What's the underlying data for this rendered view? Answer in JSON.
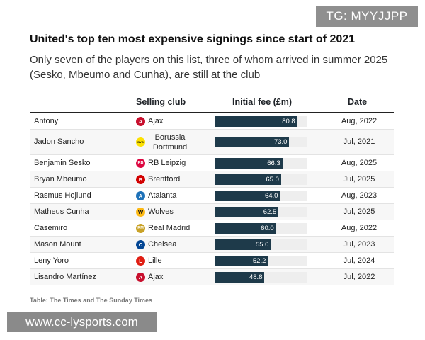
{
  "watermark_top": "TG: MYYJJPP",
  "watermark_bottom": "www.cc-lysports.com",
  "colors": {
    "bar": "#1e3a4a",
    "track": "#eeeeee"
  },
  "chart_data": {
    "type": "table",
    "title": "United's top ten most expensive signings since start of 2021",
    "subtitle": "Only seven of the players on this list, three of whom arrived in summer 2025 (Sesko, Mbeumo and Cunha), are still at the club",
    "columns": [
      "Selling club",
      "Initial fee (£m)",
      "Date"
    ],
    "max_fee": 90,
    "rows": [
      {
        "player": "Antony",
        "club": "Ajax",
        "crest": {
          "color": "#c8102e",
          "label": "A"
        },
        "fee": 80.8,
        "date": "Aug, 2022"
      },
      {
        "player": "Jadon Sancho",
        "club": "Borussia Dortmund",
        "crest": {
          "color": "#fde100",
          "label": "BVB"
        },
        "fee": 73.0,
        "date": "Jul, 2021"
      },
      {
        "player": "Benjamin Sesko",
        "club": "RB Leipzig",
        "crest": {
          "color": "#dd0741",
          "label": "RB"
        },
        "fee": 66.3,
        "date": "Aug, 2025"
      },
      {
        "player": "Bryan Mbeumo",
        "club": "Brentford",
        "crest": {
          "color": "#d20000",
          "label": "B"
        },
        "fee": 65.0,
        "date": "Jul, 2025"
      },
      {
        "player": "Rasmus Hojlund",
        "club": "Atalanta",
        "crest": {
          "color": "#1e71b8",
          "label": "A"
        },
        "fee": 64.0,
        "date": "Aug, 2023"
      },
      {
        "player": "Matheus Cunha",
        "club": "Wolves",
        "crest": {
          "color": "#fdb913",
          "label": "W"
        },
        "fee": 62.5,
        "date": "Jul, 2025"
      },
      {
        "player": "Casemiro",
        "club": "Real Madrid",
        "crest": {
          "color": "#c9a227",
          "label": "RM"
        },
        "fee": 60.0,
        "date": "Aug, 2022"
      },
      {
        "player": "Mason Mount",
        "club": "Chelsea",
        "crest": {
          "color": "#034694",
          "label": "C"
        },
        "fee": 55.0,
        "date": "Jul, 2023"
      },
      {
        "player": "Leny Yoro",
        "club": "Lille",
        "crest": {
          "color": "#e01e13",
          "label": "L"
        },
        "fee": 52.2,
        "date": "Jul, 2024"
      },
      {
        "player": "Lisandro Martínez",
        "club": "Ajax",
        "crest": {
          "color": "#c8102e",
          "label": "A"
        },
        "fee": 48.8,
        "date": "Jul, 2022"
      }
    ],
    "source": "Table: The Times and The Sunday Times"
  }
}
